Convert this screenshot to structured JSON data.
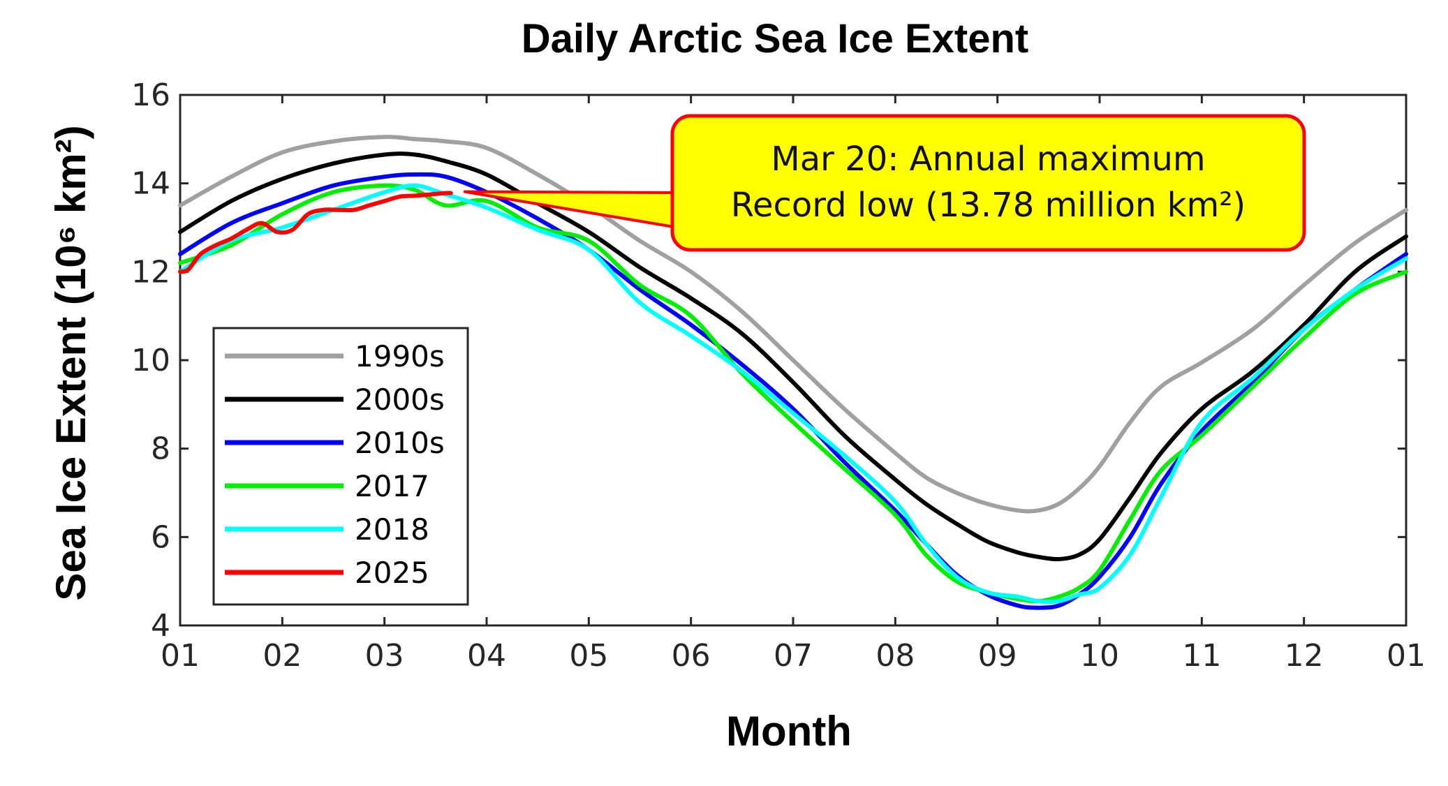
{
  "chart_data": {
    "type": "line",
    "title": "Daily Arctic Sea Ice Extent",
    "xlabel": "Month",
    "ylabel": "Sea Ice Extent (10⁶ km²)",
    "ylim": [
      4,
      16
    ],
    "xlim": [
      0,
      12
    ],
    "yticks": [
      "4",
      "6",
      "8",
      "10",
      "12",
      "14",
      "16"
    ],
    "xticks": [
      "01",
      "02",
      "03",
      "04",
      "05",
      "06",
      "07",
      "08",
      "09",
      "10",
      "11",
      "12",
      "01"
    ],
    "grid": false,
    "legend_position": "bottom-left",
    "annotation": {
      "line1": "Mar 20: Annual maximum",
      "line2": "Record low (13.78 million km²)",
      "target": {
        "x": 2.65,
        "y": 13.78
      },
      "box_color": "#ffff00",
      "border_color": "#ff0000"
    },
    "series": [
      {
        "name": "1990s",
        "color": "#a0a0a0",
        "x": [
          0,
          0.5,
          1,
          1.5,
          2,
          2.3,
          2.6,
          3,
          3.5,
          4,
          4.5,
          5,
          5.5,
          6,
          6.5,
          7,
          7.3,
          7.6,
          7.9,
          8.2,
          8.4,
          8.6,
          8.8,
          9,
          9.3,
          9.6,
          10,
          10.5,
          11,
          11.5,
          12
        ],
        "y": [
          13.5,
          14.15,
          14.7,
          14.95,
          15.05,
          15.0,
          14.95,
          14.8,
          14.2,
          13.5,
          12.7,
          12.0,
          11.1,
          10.0,
          8.9,
          7.9,
          7.35,
          7.0,
          6.75,
          6.6,
          6.6,
          6.75,
          7.1,
          7.6,
          8.6,
          9.4,
          9.95,
          10.7,
          11.7,
          12.65,
          13.4
        ]
      },
      {
        "name": "2000s",
        "color": "#000000",
        "x": [
          0,
          0.5,
          1,
          1.5,
          2,
          2.3,
          2.6,
          3,
          3.5,
          4,
          4.5,
          5,
          5.5,
          6,
          6.5,
          7,
          7.3,
          7.6,
          7.9,
          8.2,
          8.4,
          8.6,
          8.8,
          9,
          9.3,
          9.6,
          10,
          10.5,
          11,
          11.5,
          12
        ],
        "y": [
          12.9,
          13.6,
          14.1,
          14.45,
          14.65,
          14.65,
          14.5,
          14.2,
          13.55,
          12.9,
          12.1,
          11.4,
          10.6,
          9.5,
          8.3,
          7.3,
          6.75,
          6.3,
          5.9,
          5.65,
          5.55,
          5.5,
          5.6,
          5.95,
          6.9,
          7.9,
          8.9,
          9.75,
          10.8,
          12.0,
          12.8
        ]
      },
      {
        "name": "2010s",
        "color": "#0000ff",
        "x": [
          0,
          0.5,
          1,
          1.5,
          2,
          2.3,
          2.6,
          3,
          3.5,
          4,
          4.5,
          5,
          5.5,
          6,
          6.5,
          7,
          7.3,
          7.6,
          7.9,
          8.2,
          8.4,
          8.6,
          8.8,
          9,
          9.3,
          9.6,
          10,
          10.5,
          11,
          11.5,
          12
        ],
        "y": [
          12.4,
          13.1,
          13.55,
          13.95,
          14.15,
          14.2,
          14.15,
          13.8,
          13.2,
          12.5,
          11.6,
          10.8,
          9.9,
          8.9,
          7.7,
          6.6,
          5.85,
          5.15,
          4.7,
          4.45,
          4.4,
          4.45,
          4.7,
          5.1,
          6.0,
          7.2,
          8.4,
          9.5,
          10.7,
          11.6,
          12.4
        ]
      },
      {
        "name": "2017",
        "color": "#00ee00",
        "x": [
          0,
          0.5,
          1,
          1.5,
          2,
          2.3,
          2.6,
          3,
          3.5,
          4,
          4.5,
          5,
          5.5,
          6,
          6.5,
          7,
          7.3,
          7.6,
          7.9,
          8.2,
          8.4,
          8.6,
          8.8,
          9,
          9.3,
          9.6,
          10,
          10.5,
          11,
          11.5,
          12
        ],
        "y": [
          12.2,
          12.6,
          13.3,
          13.8,
          13.95,
          13.85,
          13.5,
          13.6,
          13.0,
          12.7,
          11.7,
          11.0,
          9.7,
          8.6,
          7.55,
          6.5,
          5.6,
          5.0,
          4.75,
          4.6,
          4.55,
          4.65,
          4.85,
          5.25,
          6.4,
          7.5,
          8.3,
          9.4,
          10.5,
          11.5,
          12.0
        ]
      },
      {
        "name": "2018",
        "color": "#00ffff",
        "x": [
          0,
          0.5,
          1,
          1.5,
          2,
          2.3,
          2.6,
          3,
          3.5,
          4,
          4.5,
          5,
          5.5,
          6,
          6.5,
          7,
          7.3,
          7.6,
          7.9,
          8.2,
          8.4,
          8.6,
          8.8,
          9,
          9.3,
          9.6,
          10,
          10.5,
          11,
          11.5,
          12
        ],
        "y": [
          12.0,
          12.7,
          13.0,
          13.4,
          13.8,
          13.95,
          13.75,
          13.45,
          12.95,
          12.5,
          11.3,
          10.55,
          9.75,
          8.8,
          7.85,
          6.8,
          5.85,
          5.1,
          4.75,
          4.65,
          4.55,
          4.55,
          4.7,
          4.85,
          5.6,
          6.9,
          8.6,
          9.6,
          10.7,
          11.6,
          12.3
        ]
      },
      {
        "name": "2025",
        "color": "#ff0000",
        "x": [
          0,
          0.08,
          0.2,
          0.35,
          0.5,
          0.65,
          0.8,
          0.95,
          1.1,
          1.25,
          1.4,
          1.55,
          1.7,
          1.85,
          2.0,
          2.15,
          2.3,
          2.45,
          2.6,
          2.65
        ],
        "y": [
          12.0,
          12.05,
          12.4,
          12.6,
          12.75,
          12.95,
          13.1,
          12.9,
          12.95,
          13.3,
          13.4,
          13.4,
          13.4,
          13.5,
          13.6,
          13.7,
          13.72,
          13.75,
          13.78,
          13.78
        ]
      }
    ]
  }
}
